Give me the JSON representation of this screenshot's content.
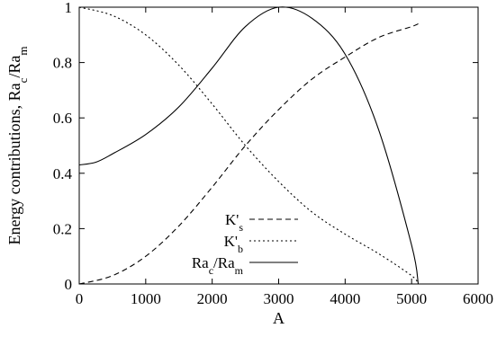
{
  "chart_data": {
    "type": "line",
    "xlabel": "A",
    "ylabel": "Energy contributions, Ra_c/Ra_m",
    "xlim": [
      0,
      6000
    ],
    "ylim": [
      0,
      1
    ],
    "x_ticks": [
      "0",
      "1000",
      "2000",
      "3000",
      "4000",
      "5000",
      "6000"
    ],
    "y_ticks": [
      "0",
      "0.2",
      "0.4",
      "0.6",
      "0.8",
      "1"
    ],
    "grid": false,
    "legend_position": "lower-right",
    "series": [
      {
        "name": "K's",
        "legend_main": "K'",
        "legend_sub": "s",
        "style": "dashed",
        "x": [
          0,
          500,
          1000,
          1500,
          2000,
          2500,
          3000,
          3500,
          4000,
          4500,
          5000,
          5100
        ],
        "y": [
          0.0,
          0.03,
          0.1,
          0.21,
          0.35,
          0.5,
          0.63,
          0.74,
          0.82,
          0.89,
          0.93,
          0.94
        ]
      },
      {
        "name": "K'b",
        "legend_main": "K'",
        "legend_sub": "b",
        "style": "dotted",
        "x": [
          0,
          500,
          1000,
          1500,
          2000,
          2500,
          3000,
          3500,
          4000,
          4500,
          5000,
          5100
        ],
        "y": [
          1.0,
          0.97,
          0.9,
          0.79,
          0.65,
          0.5,
          0.37,
          0.26,
          0.18,
          0.11,
          0.03,
          0.0
        ]
      },
      {
        "name": "Ra_c/Ra_m",
        "legend_main": "Ra",
        "legend_sub": "c",
        "legend_main2": "/Ra",
        "legend_sub2": "m",
        "style": "solid",
        "x": [
          0,
          250,
          500,
          1000,
          1500,
          2000,
          2500,
          3000,
          3500,
          4000,
          4500,
          5000,
          5100
        ],
        "y": [
          0.43,
          0.44,
          0.47,
          0.54,
          0.64,
          0.78,
          0.93,
          1.0,
          0.96,
          0.83,
          0.56,
          0.14,
          0.0
        ]
      }
    ]
  }
}
